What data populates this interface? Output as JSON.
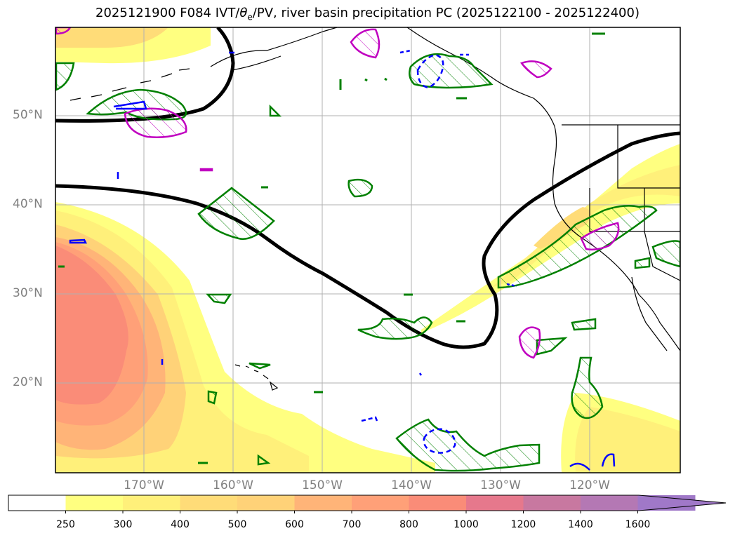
{
  "title": {
    "main": "2025121900 F084 IVT/",
    "theta": "θ",
    "theta_sub": "e",
    "rest": "/PV, river basin precipitation PC (2025122100 - 2025122400)"
  },
  "map": {
    "lat_labels": [
      "50°N",
      "40°N",
      "30°N",
      "20°N"
    ],
    "lon_labels": [
      "170°W",
      "160°W",
      "150°W",
      "140°W",
      "130°W",
      "120°W"
    ],
    "domain": {
      "lon_range": [
        "180°",
        "110°W"
      ],
      "lat_range": [
        "10°N",
        "60°N"
      ]
    }
  },
  "colorbar": {
    "ticks": [
      "250",
      "300",
      "400",
      "500",
      "600",
      "700",
      "800",
      "1000",
      "1200",
      "1400",
      "1600"
    ],
    "colors": [
      "#ffffff",
      "#ffff80",
      "#fff07a",
      "#ffdc78",
      "#ffd278",
      "#ffb478",
      "#ffa078",
      "#fa8c78",
      "#e6788c",
      "#c878a0",
      "#b478b4",
      "#a078c8"
    ],
    "extend": "max"
  },
  "legend_colors": {
    "pv_contour": "#000000",
    "theta_e_pos": "#008000",
    "theta_e_neg": "#0000ff",
    "pv_hatch": "#c000c0"
  }
}
